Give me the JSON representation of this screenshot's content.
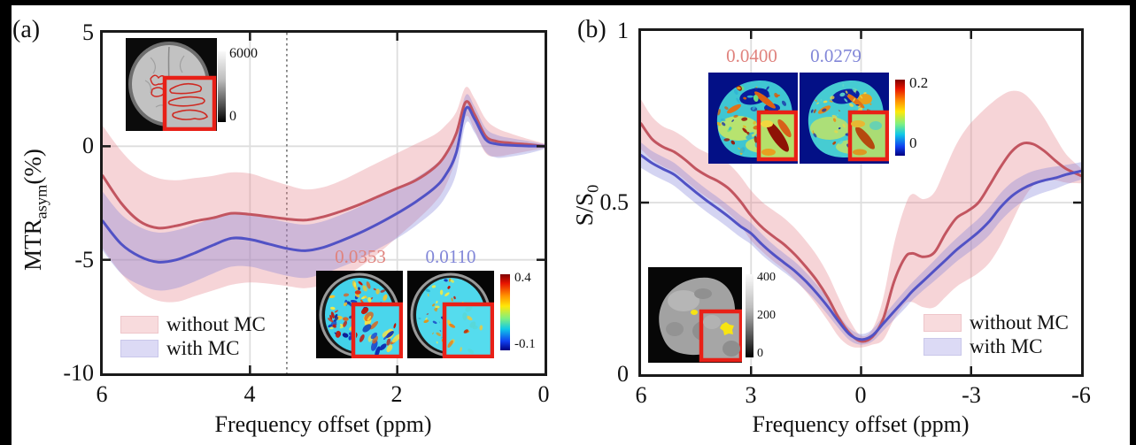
{
  "figure": {
    "panel_a": {
      "label": "(a)",
      "ylabel_main": "MTR",
      "ylabel_sub": "asym",
      "ylabel_unit": "(%)",
      "xlabel": "Frequency offset (ppm)",
      "xticks": [
        "6",
        "4",
        "2",
        "0"
      ],
      "yticks": [
        "5",
        "0",
        "-5",
        "-10"
      ],
      "legend": {
        "without": "without MC",
        "with": "with MC"
      },
      "inset_brain": {
        "colorbar_top": "6000",
        "colorbar_bottom": "0"
      },
      "inset_maps": {
        "value_without": "0.0353",
        "value_with": "0.0110",
        "colorbar_top": "0.4",
        "colorbar_bottom": "-0.1"
      }
    },
    "panel_b": {
      "label": "(b)",
      "ylabel_main": "S/S",
      "ylabel_sub": "0",
      "xlabel": "Frequency offset (ppm)",
      "xticks": [
        "6",
        "3",
        "0",
        "-3",
        "-6"
      ],
      "yticks": [
        "1",
        "0.5",
        "0"
      ],
      "legend": {
        "without": "without MC",
        "with": "with MC"
      },
      "inset_maps": {
        "value_without": "0.0400",
        "value_with": "0.0279",
        "colorbar_top": "0.2",
        "colorbar_bottom": "0"
      },
      "inset_brain": {
        "colorbar_top": "400",
        "colorbar_mid": "200",
        "colorbar_bottom": "0"
      }
    }
  },
  "colors": {
    "curve_without": "#c25560",
    "curve_with": "#5152c5",
    "band_without": "rgba(228,130,138,0.34)",
    "band_with": "rgba(128,128,216,0.34)",
    "value_without_text": "#e0837e",
    "value_with_text": "#8287d8",
    "roi_box": "#e82017"
  },
  "chart_data": [
    {
      "type": "line",
      "panel": "a",
      "title": "",
      "xlabel": "Frequency offset (ppm)",
      "ylabel": "MTR_asym (%)",
      "xlim": [
        6,
        0
      ],
      "ylim": [
        -10,
        5
      ],
      "grid_x": [
        4,
        2
      ],
      "grid_y": [
        0,
        -5
      ],
      "xtick_vals": [
        4,
        2
      ],
      "ytick_vals": [
        0,
        -5
      ],
      "vline": 3.5,
      "legend_position": "lower-left",
      "x": [
        6,
        5.75,
        5.5,
        5.25,
        5,
        4.75,
        4.5,
        4.25,
        4,
        3.75,
        3.5,
        3.25,
        3,
        2.75,
        2.5,
        2.25,
        2,
        1.75,
        1.5,
        1.35,
        1.2,
        1.07,
        0.95,
        0.8,
        0.65,
        0.45,
        0.2,
        0
      ],
      "series": [
        {
          "name": "without MC",
          "slug": "without-mc",
          "color": "#c25560",
          "band_color": "rgba(228,130,138,0.34)",
          "values": [
            -1.3,
            -2.5,
            -3.3,
            -3.6,
            -3.5,
            -3.3,
            -3.15,
            -2.95,
            -3,
            -3.1,
            -3.2,
            -3.25,
            -3.1,
            -2.85,
            -2.55,
            -2.2,
            -1.85,
            -1.5,
            -0.95,
            -0.4,
            0.55,
            1.95,
            1.4,
            0.45,
            0.22,
            0.14,
            0.07,
            0
          ],
          "band_upper": [
            0.9,
            -0.2,
            -1,
            -1.4,
            -1.5,
            -1.4,
            -1.3,
            -1.15,
            -1.2,
            -1.45,
            -1.7,
            -1.9,
            -1.8,
            -1.5,
            -1.1,
            -0.7,
            -0.3,
            0.1,
            0.5,
            0.9,
            1.5,
            2.6,
            2.1,
            1.2,
            0.8,
            0.55,
            0.3,
            0.12
          ],
          "band_lower": [
            -4.5,
            -5.6,
            -6.4,
            -6.8,
            -6.85,
            -6.6,
            -6.35,
            -6.1,
            -6,
            -6.05,
            -6.15,
            -6.25,
            -6.1,
            -5.8,
            -5.3,
            -4.7,
            -4,
            -3.3,
            -2.5,
            -1.8,
            -0.5,
            1.3,
            0.7,
            -0.3,
            -0.45,
            -0.35,
            -0.2,
            -0.08
          ]
        },
        {
          "name": "with MC",
          "slug": "with-mc",
          "color": "#5152c5",
          "band_color": "rgba(128,128,216,0.34)",
          "values": [
            -3.3,
            -4.3,
            -4.85,
            -5.1,
            -5,
            -4.7,
            -4.35,
            -4.05,
            -4.1,
            -4.3,
            -4.5,
            -4.6,
            -4.45,
            -4.15,
            -3.8,
            -3.4,
            -2.95,
            -2.45,
            -1.85,
            -1.3,
            -0.3,
            1.65,
            1.2,
            0.3,
            0.1,
            0.04,
            0.01,
            0
          ],
          "band_upper": [
            -2,
            -3,
            -3.55,
            -3.8,
            -3.7,
            -3.45,
            -3.15,
            -2.9,
            -2.95,
            -3.15,
            -3.35,
            -3.45,
            -3.3,
            -3,
            -2.65,
            -2.25,
            -1.85,
            -1.4,
            -0.85,
            -0.35,
            0.6,
            2.25,
            1.75,
            0.8,
            0.5,
            0.35,
            0.22,
            0.1
          ],
          "band_lower": [
            -4.6,
            -5.6,
            -6.1,
            -6.35,
            -6.25,
            -5.95,
            -5.6,
            -5.3,
            -5.3,
            -5.5,
            -5.7,
            -5.8,
            -5.6,
            -5.3,
            -4.95,
            -4.5,
            -4.05,
            -3.5,
            -2.85,
            -2.25,
            -1.2,
            1,
            0.6,
            -0.25,
            -0.5,
            -0.45,
            -0.3,
            -0.12
          ]
        }
      ],
      "annotations": {
        "map_value_without": 0.0353,
        "map_value_with": 0.011,
        "map_colorbar_range": [
          -0.1,
          0.4
        ],
        "anatomy_colorbar_range": [
          0,
          6000
        ]
      }
    },
    {
      "type": "line",
      "panel": "b",
      "title": "",
      "xlabel": "Frequency offset (ppm)",
      "ylabel": "S/S_0",
      "xlim": [
        6,
        -6
      ],
      "ylim": [
        0,
        1
      ],
      "grid_x": [
        3,
        0,
        -3
      ],
      "grid_y": [
        0.5
      ],
      "xtick_vals": [
        3,
        0,
        -3
      ],
      "ytick_vals": [
        0.5
      ],
      "vline": null,
      "legend_position": "lower-right",
      "x": [
        6,
        5.7,
        5.4,
        5.1,
        4.8,
        4.5,
        4.2,
        3.9,
        3.6,
        3.3,
        3,
        2.7,
        2.4,
        2.1,
        1.8,
        1.5,
        1.2,
        0.9,
        0.6,
        0.3,
        0,
        -0.3,
        -0.6,
        -0.9,
        -1.2,
        -1.4,
        -1.7,
        -2,
        -2.3,
        -2.6,
        -2.9,
        -3.2,
        -3.5,
        -3.8,
        -4.1,
        -4.4,
        -4.7,
        -5,
        -5.3,
        -5.6,
        -6
      ],
      "series": [
        {
          "name": "without MC",
          "slug": "without-mc",
          "color": "#c25560",
          "band_color": "rgba(228,130,138,0.34)",
          "values": [
            0.73,
            0.685,
            0.662,
            0.648,
            0.625,
            0.598,
            0.578,
            0.562,
            0.54,
            0.505,
            0.462,
            0.428,
            0.402,
            0.378,
            0.348,
            0.312,
            0.272,
            0.222,
            0.162,
            0.118,
            0.096,
            0.108,
            0.16,
            0.27,
            0.34,
            0.352,
            0.342,
            0.355,
            0.41,
            0.455,
            0.475,
            0.5,
            0.55,
            0.603,
            0.648,
            0.672,
            0.67,
            0.65,
            0.622,
            0.598,
            0.578
          ],
          "band_upper": [
            0.8,
            0.75,
            0.722,
            0.708,
            0.688,
            0.662,
            0.645,
            0.632,
            0.612,
            0.578,
            0.535,
            0.502,
            0.478,
            0.455,
            0.425,
            0.388,
            0.345,
            0.29,
            0.22,
            0.155,
            0.112,
            0.13,
            0.22,
            0.38,
            0.49,
            0.525,
            0.51,
            0.53,
            0.6,
            0.67,
            0.72,
            0.755,
            0.785,
            0.81,
            0.825,
            0.82,
            0.79,
            0.745,
            0.69,
            0.64,
            0.6
          ],
          "band_lower": [
            0.655,
            0.625,
            0.605,
            0.59,
            0.565,
            0.538,
            0.515,
            0.495,
            0.468,
            0.435,
            0.39,
            0.358,
            0.33,
            0.305,
            0.275,
            0.24,
            0.2,
            0.155,
            0.108,
            0.082,
            0.078,
            0.086,
            0.1,
            0.16,
            0.205,
            0.21,
            0.195,
            0.195,
            0.225,
            0.255,
            0.275,
            0.295,
            0.325,
            0.375,
            0.44,
            0.505,
            0.55,
            0.565,
            0.565,
            0.558,
            0.556
          ]
        },
        {
          "name": "with MC",
          "slug": "with-mc",
          "color": "#5152c5",
          "band_color": "rgba(128,128,216,0.34)",
          "values": [
            0.638,
            0.615,
            0.598,
            0.582,
            0.556,
            0.53,
            0.505,
            0.482,
            0.458,
            0.432,
            0.41,
            0.378,
            0.35,
            0.325,
            0.3,
            0.27,
            0.235,
            0.196,
            0.152,
            0.115,
            0.101,
            0.112,
            0.147,
            0.183,
            0.218,
            0.242,
            0.272,
            0.302,
            0.332,
            0.362,
            0.388,
            0.414,
            0.446,
            0.486,
            0.518,
            0.54,
            0.555,
            0.565,
            0.572,
            0.582,
            0.592
          ],
          "band_upper": [
            0.675,
            0.65,
            0.633,
            0.616,
            0.59,
            0.563,
            0.538,
            0.515,
            0.49,
            0.464,
            0.44,
            0.408,
            0.378,
            0.352,
            0.327,
            0.296,
            0.26,
            0.22,
            0.172,
            0.133,
            0.117,
            0.13,
            0.168,
            0.207,
            0.244,
            0.268,
            0.3,
            0.332,
            0.365,
            0.396,
            0.425,
            0.453,
            0.487,
            0.527,
            0.558,
            0.578,
            0.592,
            0.6,
            0.605,
            0.61,
            0.618
          ],
          "band_lower": [
            0.601,
            0.582,
            0.566,
            0.549,
            0.523,
            0.497,
            0.472,
            0.449,
            0.425,
            0.4,
            0.378,
            0.347,
            0.321,
            0.297,
            0.272,
            0.243,
            0.21,
            0.172,
            0.132,
            0.098,
            0.086,
            0.095,
            0.126,
            0.159,
            0.192,
            0.216,
            0.245,
            0.272,
            0.3,
            0.328,
            0.352,
            0.376,
            0.406,
            0.446,
            0.478,
            0.502,
            0.518,
            0.53,
            0.54,
            0.553,
            0.567
          ]
        }
      ],
      "annotations": {
        "map_value_without": 0.04,
        "map_value_with": 0.0279,
        "map_colorbar_range": [
          0,
          0.2
        ],
        "anatomy_colorbar_range": [
          0,
          400
        ]
      }
    }
  ]
}
